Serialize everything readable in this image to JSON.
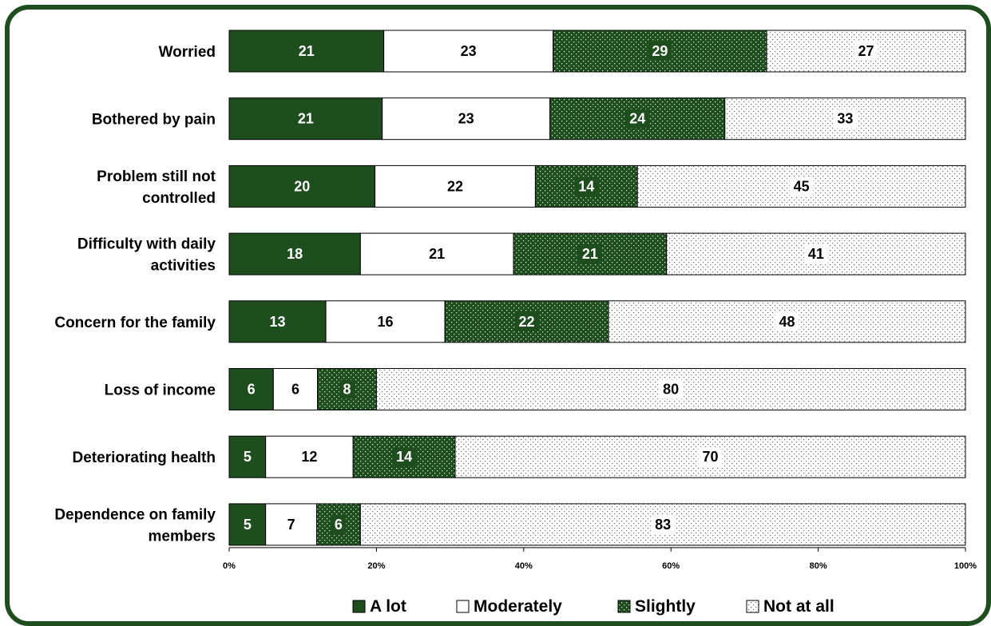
{
  "chart_data": {
    "type": "bar",
    "orientation": "horizontal",
    "stacked": "percent",
    "categories": [
      "Worried",
      "Bothered by pain",
      "Problem still not controlled",
      "Difficulty with daily activities",
      "Concern for the family",
      "Loss of income",
      "Deteriorating health",
      "Dependence on family members"
    ],
    "category_lines": [
      [
        "Worried"
      ],
      [
        "Bothered by pain"
      ],
      [
        "Problem still not",
        "controlled"
      ],
      [
        "Difficulty with daily",
        "activities"
      ],
      [
        "Concern for the family"
      ],
      [
        "Loss of income"
      ],
      [
        "Deteriorating health"
      ],
      [
        "Dependence on family",
        "members"
      ]
    ],
    "series": [
      {
        "name": "A lot",
        "values": [
          21,
          21,
          20,
          18,
          13,
          6,
          5,
          5
        ]
      },
      {
        "name": "Moderately",
        "values": [
          23,
          23,
          22,
          21,
          16,
          6,
          12,
          7
        ]
      },
      {
        "name": "Slightly",
        "values": [
          29,
          24,
          14,
          21,
          22,
          8,
          14,
          6
        ]
      },
      {
        "name": "Not at all",
        "values": [
          27,
          33,
          45,
          41,
          48,
          80,
          70,
          83
        ]
      }
    ],
    "xlim": [
      0,
      100
    ],
    "xticks": [
      "0%",
      "20%",
      "40%",
      "60%",
      "80%",
      "100%"
    ],
    "legend_position": "bottom",
    "colors": {
      "a_lot": "#1e4d1e",
      "moderately": "#ffffff",
      "slightly": "#1e4d1e",
      "not_at_all": "#ffffff",
      "border": "#1e4d1e"
    }
  }
}
